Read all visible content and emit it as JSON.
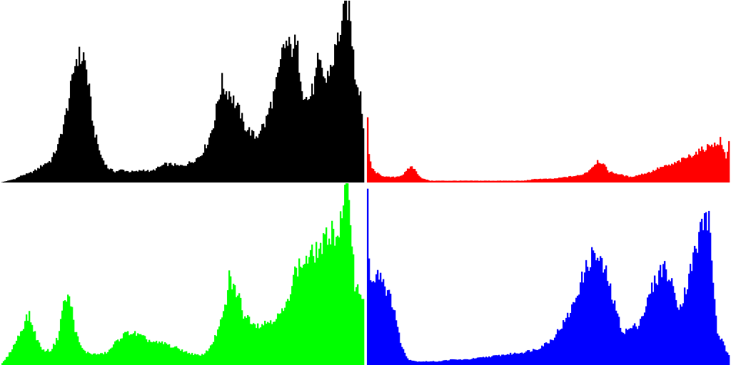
{
  "chart_data": [
    {
      "type": "area",
      "channel": "luminance",
      "color": "#000000",
      "xlim": [
        0,
        255
      ],
      "ylim": [
        0,
        1
      ],
      "grid": false,
      "legend": "none",
      "x": [
        0,
        10,
        15,
        20,
        25,
        30,
        35,
        40,
        45,
        50,
        52,
        54,
        56,
        58,
        60,
        62,
        65,
        70,
        75,
        80,
        85,
        90,
        95,
        100,
        105,
        110,
        115,
        120,
        125,
        130,
        135,
        140,
        145,
        150,
        152,
        155,
        158,
        160,
        162,
        165,
        168,
        170,
        172,
        175,
        178,
        180,
        182,
        185,
        188,
        190,
        192,
        195,
        198,
        200,
        203,
        205,
        208,
        210,
        212,
        215,
        218,
        220,
        222,
        225,
        228,
        230,
        232,
        235,
        238,
        240,
        242,
        244,
        246,
        248,
        250,
        252,
        253,
        254,
        255
      ],
      "y": [
        0,
        0.02,
        0.04,
        0.05,
        0.07,
        0.1,
        0.12,
        0.2,
        0.35,
        0.55,
        0.66,
        0.7,
        0.68,
        0.7,
        0.62,
        0.5,
        0.3,
        0.15,
        0.08,
        0.06,
        0.07,
        0.06,
        0.06,
        0.07,
        0.06,
        0.08,
        0.1,
        0.1,
        0.09,
        0.1,
        0.12,
        0.15,
        0.22,
        0.35,
        0.45,
        0.55,
        0.5,
        0.5,
        0.47,
        0.42,
        0.38,
        0.32,
        0.3,
        0.28,
        0.25,
        0.26,
        0.3,
        0.32,
        0.4,
        0.45,
        0.5,
        0.6,
        0.75,
        0.76,
        0.73,
        0.77,
        0.72,
        0.6,
        0.5,
        0.45,
        0.5,
        0.55,
        0.65,
        0.62,
        0.55,
        0.62,
        0.65,
        0.75,
        0.85,
        0.9,
        1.0,
        0.95,
        0.8,
        0.6,
        0.55,
        0.5,
        0.4,
        0.3,
        0
      ]
    },
    {
      "type": "area",
      "channel": "red",
      "color": "#ff0000",
      "xlim": [
        0,
        255
      ],
      "ylim": [
        0,
        1
      ],
      "grid": false,
      "legend": "none",
      "x": [
        0,
        1,
        2,
        4,
        6,
        10,
        15,
        20,
        25,
        28,
        30,
        32,
        35,
        38,
        40,
        45,
        50,
        60,
        70,
        80,
        90,
        100,
        110,
        120,
        130,
        140,
        150,
        155,
        160,
        162,
        165,
        168,
        170,
        175,
        180,
        185,
        190,
        195,
        200,
        205,
        210,
        215,
        220,
        225,
        230,
        235,
        240,
        242,
        245,
        248,
        250,
        252,
        254,
        255
      ],
      "y": [
        0.0,
        0.33,
        0.15,
        0.08,
        0.06,
        0.04,
        0.03,
        0.03,
        0.04,
        0.06,
        0.08,
        0.09,
        0.06,
        0.03,
        0.02,
        0.01,
        0.01,
        0.01,
        0.01,
        0.01,
        0.01,
        0.01,
        0.01,
        0.02,
        0.02,
        0.03,
        0.04,
        0.06,
        0.1,
        0.12,
        0.11,
        0.08,
        0.06,
        0.05,
        0.04,
        0.03,
        0.04,
        0.05,
        0.06,
        0.08,
        0.09,
        0.1,
        0.12,
        0.14,
        0.16,
        0.18,
        0.2,
        0.22,
        0.2,
        0.23,
        0.18,
        0.14,
        0.22,
        0.0
      ]
    },
    {
      "type": "area",
      "channel": "green",
      "color": "#00ff00",
      "xlim": [
        0,
        255
      ],
      "ylim": [
        0,
        1
      ],
      "grid": false,
      "legend": "none",
      "x": [
        0,
        5,
        10,
        15,
        18,
        20,
        22,
        25,
        28,
        30,
        35,
        40,
        43,
        45,
        48,
        50,
        52,
        55,
        58,
        60,
        65,
        70,
        75,
        80,
        85,
        90,
        95,
        100,
        105,
        110,
        115,
        120,
        125,
        130,
        135,
        140,
        145,
        150,
        155,
        158,
        160,
        162,
        165,
        168,
        170,
        175,
        180,
        185,
        190,
        195,
        200,
        205,
        210,
        215,
        220,
        225,
        230,
        232,
        235,
        238,
        240,
        242,
        244,
        246,
        248,
        250,
        252,
        254,
        255
      ],
      "y": [
        0,
        0.05,
        0.12,
        0.2,
        0.26,
        0.27,
        0.22,
        0.15,
        0.1,
        0.08,
        0.08,
        0.15,
        0.3,
        0.36,
        0.37,
        0.3,
        0.2,
        0.12,
        0.08,
        0.07,
        0.06,
        0.06,
        0.07,
        0.12,
        0.16,
        0.18,
        0.17,
        0.15,
        0.13,
        0.12,
        0.12,
        0.1,
        0.09,
        0.07,
        0.06,
        0.05,
        0.08,
        0.15,
        0.25,
        0.35,
        0.48,
        0.45,
        0.4,
        0.35,
        0.28,
        0.25,
        0.22,
        0.23,
        0.25,
        0.27,
        0.32,
        0.5,
        0.55,
        0.58,
        0.62,
        0.65,
        0.72,
        0.75,
        0.7,
        0.78,
        0.85,
        1.0,
        0.95,
        0.7,
        0.45,
        0.42,
        0.4,
        0.38,
        0
      ]
    },
    {
      "type": "area",
      "channel": "blue",
      "color": "#0000ff",
      "xlim": [
        0,
        255
      ],
      "ylim": [
        0,
        1
      ],
      "grid": false,
      "legend": "none",
      "x": [
        0,
        1,
        2,
        4,
        6,
        8,
        10,
        12,
        14,
        16,
        18,
        20,
        22,
        25,
        28,
        30,
        35,
        40,
        45,
        50,
        60,
        70,
        80,
        90,
        100,
        110,
        120,
        130,
        140,
        145,
        150,
        155,
        158,
        160,
        162,
        165,
        168,
        170,
        172,
        175,
        178,
        180,
        185,
        190,
        195,
        200,
        205,
        208,
        210,
        212,
        215,
        218,
        220,
        225,
        230,
        232,
        234,
        236,
        238,
        240,
        242,
        244,
        246,
        248,
        250,
        252,
        254,
        255
      ],
      "y": [
        0.0,
        1.0,
        0.55,
        0.45,
        0.5,
        0.52,
        0.5,
        0.47,
        0.42,
        0.38,
        0.35,
        0.3,
        0.2,
        0.1,
        0.05,
        0.03,
        0.02,
        0.02,
        0.02,
        0.02,
        0.03,
        0.03,
        0.04,
        0.05,
        0.06,
        0.07,
        0.09,
        0.14,
        0.25,
        0.33,
        0.45,
        0.55,
        0.6,
        0.62,
        0.58,
        0.55,
        0.5,
        0.45,
        0.38,
        0.3,
        0.22,
        0.18,
        0.2,
        0.22,
        0.3,
        0.42,
        0.5,
        0.55,
        0.52,
        0.48,
        0.42,
        0.35,
        0.32,
        0.45,
        0.62,
        0.65,
        0.75,
        0.8,
        0.82,
        0.78,
        0.6,
        0.35,
        0.18,
        0.15,
        0.12,
        0.08,
        0.05,
        0
      ]
    }
  ]
}
